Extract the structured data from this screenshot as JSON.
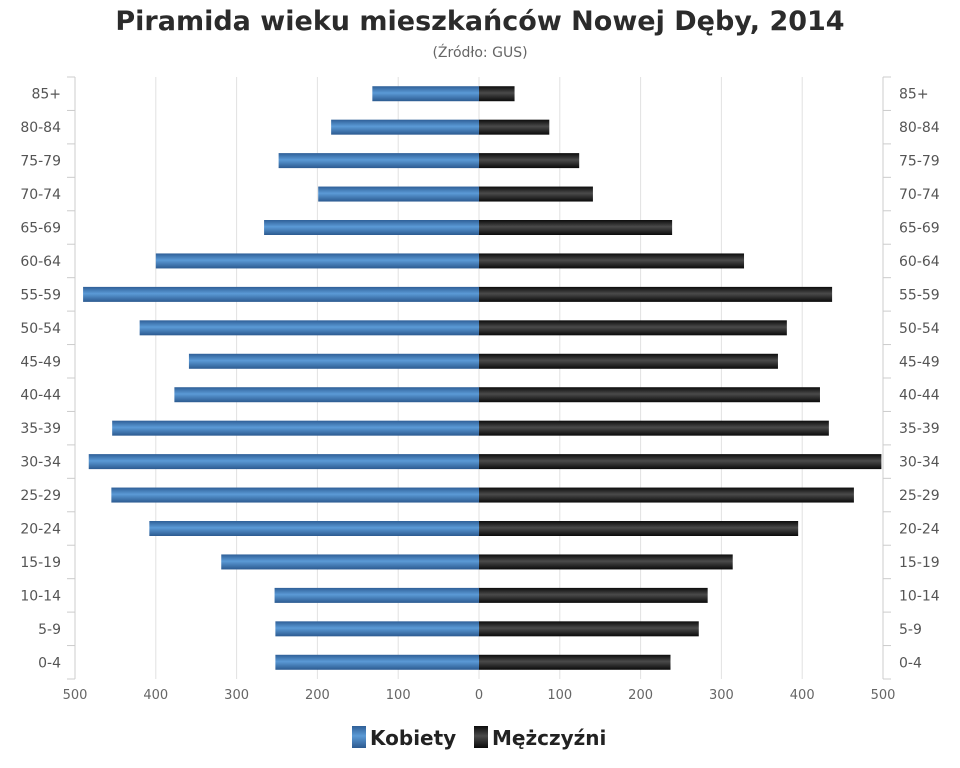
{
  "chart_data": {
    "type": "bar",
    "orientation": "horizontal-population-pyramid",
    "title": "Piramida wieku mieszkańców Nowej Dęby, 2014",
    "subtitle": "(Źródło: GUS)",
    "categories": [
      "85+",
      "80-84",
      "75-79",
      "70-74",
      "65-69",
      "60-64",
      "55-59",
      "50-54",
      "45-49",
      "40-44",
      "35-39",
      "30-34",
      "25-29",
      "20-24",
      "15-19",
      "10-14",
      "5-9",
      "0-4"
    ],
    "series": [
      {
        "name": "Kobiety",
        "side": "left",
        "color": "#3a76b4",
        "values": [
          132,
          183,
          248,
          199,
          266,
          400,
          490,
          420,
          359,
          377,
          454,
          483,
          455,
          408,
          319,
          253,
          252,
          252
        ]
      },
      {
        "name": "Mężczyźni",
        "side": "right",
        "color": "#1a1a1a",
        "values": [
          44,
          87,
          124,
          141,
          239,
          328,
          437,
          381,
          370,
          422,
          433,
          498,
          464,
          395,
          314,
          283,
          272,
          237
        ]
      }
    ],
    "xlim": [
      -500,
      500
    ],
    "x_ticks": [
      "500",
      "400",
      "300",
      "200",
      "100",
      "0",
      "100",
      "200",
      "300",
      "400",
      "500"
    ],
    "grid": true,
    "legend_position": "bottom"
  }
}
